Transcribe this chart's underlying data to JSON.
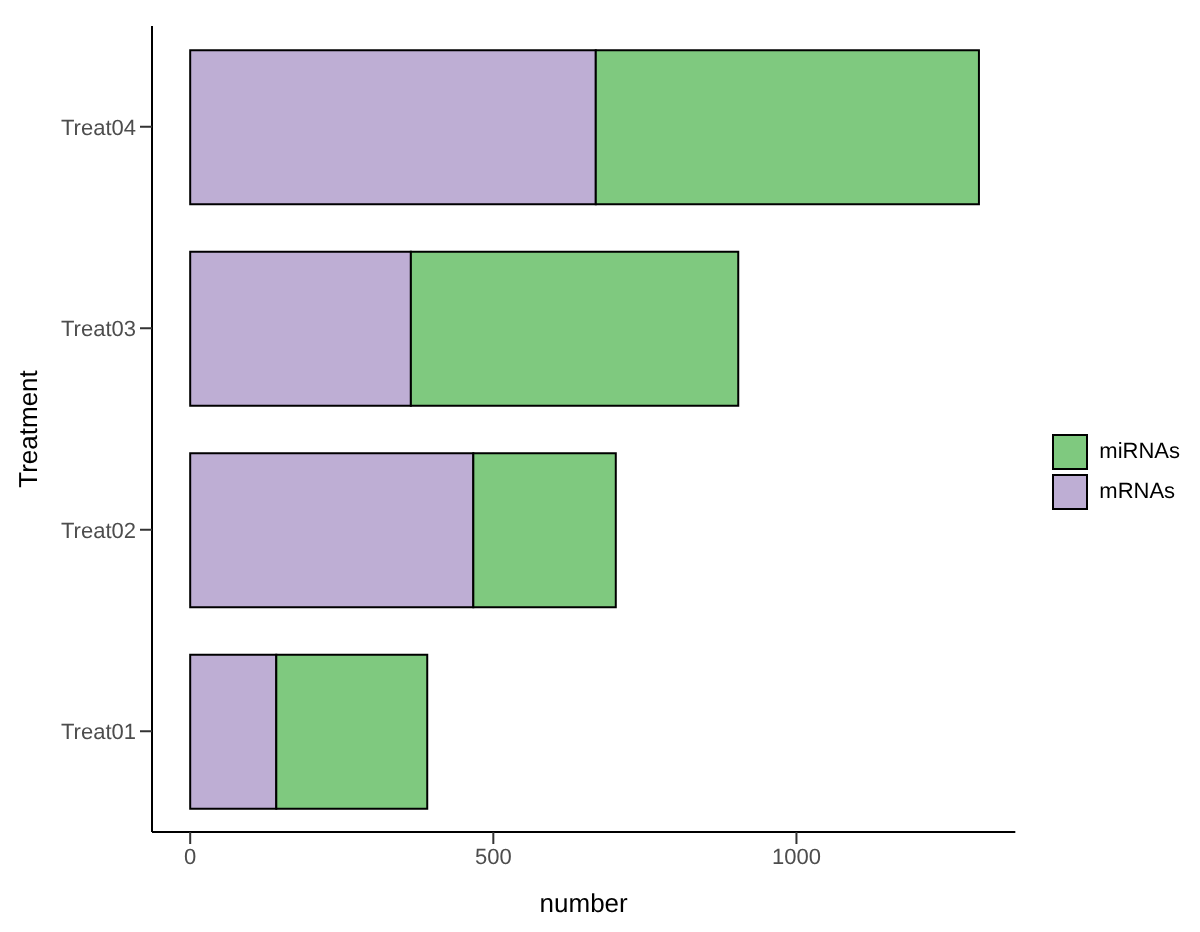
{
  "chart_data": {
    "type": "bar",
    "orientation": "horizontal",
    "stacked": true,
    "xlabel": "number",
    "ylabel": "Treatment",
    "categories": [
      "Treat04",
      "Treat03",
      "Treat02",
      "Treat01"
    ],
    "series": [
      {
        "name": "mRNAs",
        "color": "#beaed4",
        "values": [
          669,
          364,
          467,
          142
        ]
      },
      {
        "name": "miRNAs",
        "color": "#7fc97f",
        "values": [
          632,
          540,
          235,
          249
        ]
      }
    ],
    "xlim": [
      -63,
      1361
    ],
    "xticks": [
      0,
      500,
      1000
    ],
    "grid": false,
    "legend": "right"
  }
}
